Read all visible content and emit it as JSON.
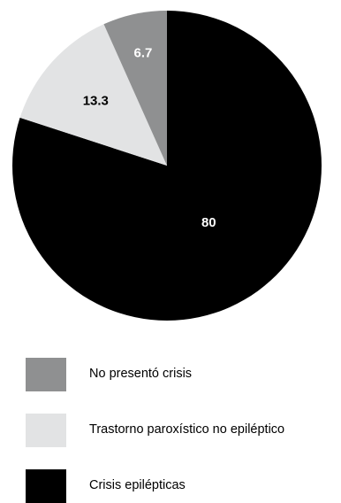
{
  "chart_data": {
    "type": "pie",
    "categories": [
      "Crisis epilépticas",
      "Trastorno paroxístico no epiléptico",
      "No presentó crisis"
    ],
    "values": [
      80,
      13.3,
      6.7
    ],
    "data_labels": [
      "80",
      "13.3",
      "6.7"
    ],
    "colors": [
      "#000000",
      "#e2e3e4",
      "#8f9091"
    ],
    "label_colors": [
      "#ffffff",
      "#000000",
      "#ffffff"
    ],
    "start_angle": "12 o'clock",
    "direction": "clockwise",
    "legend_position": "bottom-left",
    "title": "",
    "xlabel": "",
    "ylabel": ""
  },
  "legend": {
    "items": [
      {
        "label": "No presentó crisis",
        "color": "#8f9091"
      },
      {
        "label": "Trastorno paroxístico no epiléptico",
        "color": "#e2e3e4"
      },
      {
        "label": "Crisis epilépticas",
        "color": "#000000"
      }
    ]
  }
}
